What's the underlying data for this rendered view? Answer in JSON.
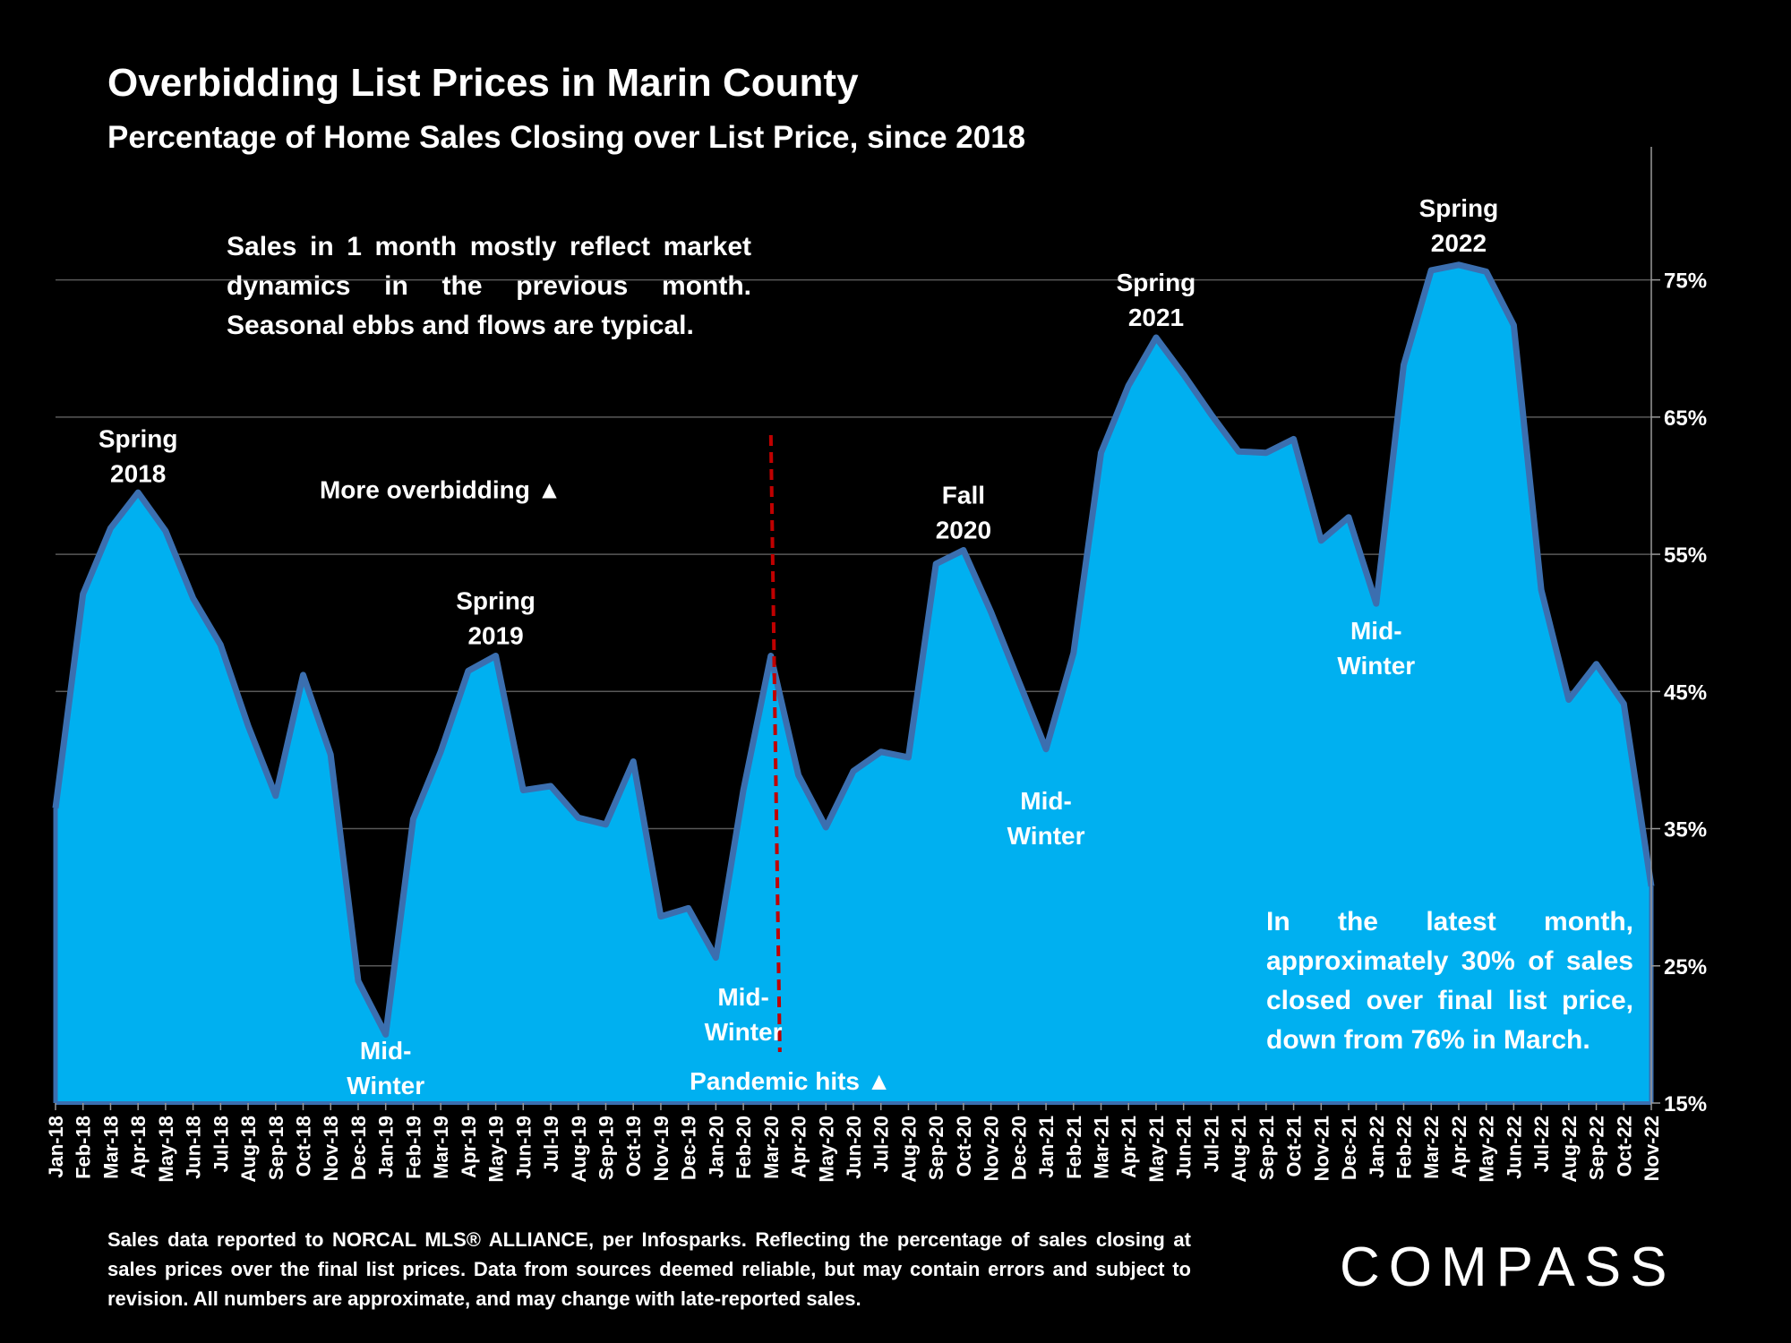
{
  "chart_data": {
    "type": "area",
    "title": "Overbidding List Prices in Marin County",
    "subtitle": "Percentage of Home Sales Closing over List Price, since 2018",
    "categories": [
      "Jan-18",
      "Feb-18",
      "Mar-18",
      "Apr-18",
      "May-18",
      "Jun-18",
      "Jul-18",
      "Aug-18",
      "Sep-18",
      "Oct-18",
      "Nov-18",
      "Dec-18",
      "Jan-19",
      "Feb-19",
      "Mar-19",
      "Apr-19",
      "May-19",
      "Jun-19",
      "Jul-19",
      "Aug-19",
      "Sep-19",
      "Oct-19",
      "Nov-19",
      "Dec-19",
      "Jan-20",
      "Feb-20",
      "Mar-20",
      "Apr-20",
      "May-20",
      "Jun-20",
      "Jul-20",
      "Aug-20",
      "Sep-20",
      "Oct-20",
      "Nov-20",
      "Dec-20",
      "Jan-21",
      "Feb-21",
      "Mar-21",
      "Apr-21",
      "May-21",
      "Jun-21",
      "Jul-21",
      "Aug-21",
      "Sep-21",
      "Oct-21",
      "Nov-21",
      "Dec-21",
      "Jan-22",
      "Feb-22",
      "Mar-22",
      "Apr-22",
      "May-22",
      "Jun-22",
      "Jul-22",
      "Aug-22",
      "Sep-22",
      "Oct-22",
      "Nov-22"
    ],
    "series": [
      {
        "values": [
          36.5,
          52.1,
          56.9,
          59.5,
          56.7,
          51.8,
          48.4,
          42.5,
          37.4,
          46.2,
          40.4,
          23.9,
          20.0,
          35.7,
          40.6,
          46.5,
          47.6,
          37.8,
          38.1,
          35.8,
          35.3,
          39.9,
          28.6,
          29.2,
          25.6,
          37.8,
          47.6,
          38.9,
          35.1,
          39.2,
          40.6,
          40.2,
          54.3,
          55.3,
          50.8,
          45.8,
          40.8,
          47.8,
          62.4,
          67.3,
          70.8,
          68.1,
          65.2,
          62.5,
          62.4,
          63.4,
          56.0,
          57.7,
          51.4,
          68.8,
          75.7,
          76.1,
          75.6,
          71.7,
          52.4,
          44.4,
          47.0,
          44.1,
          30.8
        ]
      }
    ],
    "ylim": [
      15,
      80
    ],
    "yticks": [
      "15%",
      "25%",
      "35%",
      "45%",
      "55%",
      "65%",
      "75%"
    ],
    "ytick_values": [
      15,
      25,
      35,
      45,
      55,
      65,
      75
    ],
    "grid": "horizontal",
    "axis_position": "right",
    "colors": {
      "fill": "#00B0F0",
      "line": "#3B6FB0",
      "marker": "#C00000",
      "grid": "#595959"
    },
    "annotations": [
      {
        "lines": [
          "Spring",
          "2018"
        ],
        "category": "Apr-18",
        "value": 62.8
      },
      {
        "lines": [
          "More overbidding ▲"
        ],
        "category": "Mar-19",
        "value": 59.1
      },
      {
        "lines": [
          "Spring",
          "2019"
        ],
        "category": "May-19",
        "value": 51.0
      },
      {
        "lines": [
          "Fall",
          "2020"
        ],
        "category": "Oct-20",
        "value": 58.7
      },
      {
        "lines": [
          "Spring",
          "2021"
        ],
        "category": "May-21",
        "value": 74.2
      },
      {
        "lines": [
          "Spring",
          "2022"
        ],
        "category": "Apr-22",
        "value": 79.6
      },
      {
        "lines": [
          "Mid-",
          "Winter"
        ],
        "category": "Jan-19",
        "value": 18.2
      },
      {
        "lines": [
          "Mid-",
          "Winter"
        ],
        "category": "Feb-20",
        "value": 22.1
      },
      {
        "lines": [
          "Mid-",
          "Winter"
        ],
        "category": "Jan-21",
        "value": 36.4
      },
      {
        "lines": [
          "Mid-",
          "Winter"
        ],
        "category": "Jan-22",
        "value": 48.8
      }
    ],
    "event_marker": {
      "category": "Mar-20",
      "label": "Pandemic hits ▲"
    }
  },
  "notes": {
    "top": "Sales in 1 month mostly reflect market dynamics in the previous month. Seasonal ebbs and flows are typical.",
    "latest": "In the latest month, approximately 30% of sales closed over final list price, down from 76% in March."
  },
  "footer": "Sales data reported to NORCAL MLS® ALLIANCE, per Infosparks. Reflecting the percentage of sales closing at sales prices over the final list prices. Data from sources deemed reliable, but may contain errors and subject to revision. All numbers are approximate, and may change with late-reported sales.",
  "logo": "COMPASS"
}
